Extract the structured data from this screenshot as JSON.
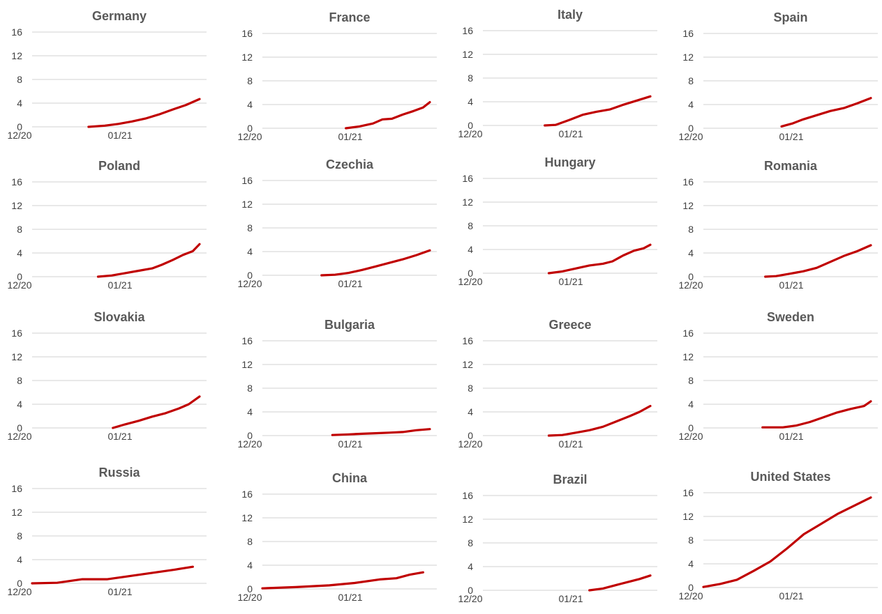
{
  "chart_data": [
    {
      "type": "line",
      "title": "Germany",
      "yticks": [
        0,
        4,
        8,
        12,
        16
      ],
      "ylim": [
        0,
        16
      ],
      "x_ticks": [
        "12/20",
        "01/21"
      ],
      "series": [
        {
          "values": [
            [
              0.18,
              0.0
            ],
            [
              0.3,
              0.2
            ],
            [
              0.4,
              0.5
            ],
            [
              0.5,
              0.9
            ],
            [
              0.6,
              1.4
            ],
            [
              0.7,
              2.1
            ],
            [
              0.8,
              2.9
            ],
            [
              0.9,
              3.7
            ],
            [
              1.0,
              4.7
            ]
          ]
        }
      ]
    },
    {
      "type": "line",
      "title": "France",
      "yticks": [
        0,
        4,
        8,
        12,
        16
      ],
      "ylim": [
        0,
        16
      ],
      "x_ticks": [
        "12/20",
        "01/21"
      ],
      "series": [
        {
          "values": [
            [
              0.38,
              0.0
            ],
            [
              0.48,
              0.3
            ],
            [
              0.58,
              0.8
            ],
            [
              0.65,
              1.5
            ],
            [
              0.72,
              1.6
            ],
            [
              0.8,
              2.3
            ],
            [
              0.88,
              2.9
            ],
            [
              0.95,
              3.5
            ],
            [
              1.0,
              4.4
            ]
          ]
        }
      ]
    },
    {
      "type": "line",
      "title": "Italy",
      "yticks": [
        0,
        4,
        8,
        12,
        16
      ],
      "ylim": [
        0,
        16
      ],
      "x_ticks": [
        "12/20",
        "01/21"
      ],
      "series": [
        {
          "values": [
            [
              0.22,
              0.0
            ],
            [
              0.3,
              0.1
            ],
            [
              0.4,
              0.9
            ],
            [
              0.5,
              1.8
            ],
            [
              0.6,
              2.3
            ],
            [
              0.7,
              2.7
            ],
            [
              0.8,
              3.5
            ],
            [
              0.9,
              4.2
            ],
            [
              1.0,
              4.9
            ]
          ]
        }
      ]
    },
    {
      "type": "line",
      "title": "Spain",
      "yticks": [
        0,
        4,
        8,
        12,
        16
      ],
      "ylim": [
        0,
        16
      ],
      "x_ticks": [
        "12/20",
        "01/21"
      ],
      "series": [
        {
          "values": [
            [
              0.34,
              0.3
            ],
            [
              0.42,
              0.8
            ],
            [
              0.5,
              1.5
            ],
            [
              0.6,
              2.2
            ],
            [
              0.7,
              2.9
            ],
            [
              0.8,
              3.4
            ],
            [
              0.9,
              4.2
            ],
            [
              1.0,
              5.1
            ]
          ]
        }
      ]
    },
    {
      "type": "line",
      "title": "Poland",
      "yticks": [
        0,
        4,
        8,
        12,
        16
      ],
      "ylim": [
        0,
        16
      ],
      "x_ticks": [
        "12/20",
        "01/21"
      ],
      "series": [
        {
          "values": [
            [
              0.25,
              0.0
            ],
            [
              0.35,
              0.2
            ],
            [
              0.45,
              0.6
            ],
            [
              0.55,
              1.0
            ],
            [
              0.65,
              1.4
            ],
            [
              0.72,
              2.0
            ],
            [
              0.8,
              2.8
            ],
            [
              0.88,
              3.7
            ],
            [
              0.95,
              4.3
            ],
            [
              1.0,
              5.5
            ]
          ]
        }
      ]
    },
    {
      "type": "line",
      "title": "Czechia",
      "yticks": [
        0,
        4,
        8,
        12,
        16
      ],
      "ylim": [
        0,
        16
      ],
      "x_ticks": [
        "12/20",
        "01/21"
      ],
      "series": [
        {
          "values": [
            [
              0.2,
              0.0
            ],
            [
              0.3,
              0.1
            ],
            [
              0.4,
              0.4
            ],
            [
              0.5,
              0.9
            ],
            [
              0.6,
              1.5
            ],
            [
              0.7,
              2.1
            ],
            [
              0.8,
              2.7
            ],
            [
              0.9,
              3.4
            ],
            [
              1.0,
              4.2
            ]
          ]
        }
      ]
    },
    {
      "type": "line",
      "title": "Hungary",
      "yticks": [
        0,
        4,
        8,
        12,
        16
      ],
      "ylim": [
        0,
        16
      ],
      "x_ticks": [
        "12/20",
        "01/21"
      ],
      "series": [
        {
          "values": [
            [
              0.25,
              0.0
            ],
            [
              0.35,
              0.3
            ],
            [
              0.45,
              0.8
            ],
            [
              0.55,
              1.3
            ],
            [
              0.65,
              1.6
            ],
            [
              0.72,
              2.0
            ],
            [
              0.8,
              3.0
            ],
            [
              0.88,
              3.8
            ],
            [
              0.95,
              4.2
            ],
            [
              1.0,
              4.8
            ]
          ]
        }
      ]
    },
    {
      "type": "line",
      "title": "Romania",
      "yticks": [
        0,
        4,
        8,
        12,
        16
      ],
      "ylim": [
        0,
        16
      ],
      "x_ticks": [
        "12/20",
        "01/21"
      ],
      "series": [
        {
          "values": [
            [
              0.22,
              0.0
            ],
            [
              0.3,
              0.1
            ],
            [
              0.4,
              0.5
            ],
            [
              0.5,
              0.9
            ],
            [
              0.6,
              1.5
            ],
            [
              0.7,
              2.5
            ],
            [
              0.8,
              3.5
            ],
            [
              0.9,
              4.3
            ],
            [
              1.0,
              5.3
            ]
          ]
        }
      ]
    },
    {
      "type": "line",
      "title": "Slovakia",
      "yticks": [
        0,
        4,
        8,
        12,
        16
      ],
      "ylim": [
        0,
        16
      ],
      "x_ticks": [
        "12/20",
        "01/21"
      ],
      "series": [
        {
          "values": [
            [
              0.36,
              0.0
            ],
            [
              0.45,
              0.6
            ],
            [
              0.55,
              1.2
            ],
            [
              0.65,
              1.9
            ],
            [
              0.75,
              2.5
            ],
            [
              0.85,
              3.3
            ],
            [
              0.92,
              4.0
            ],
            [
              1.0,
              5.3
            ]
          ]
        }
      ]
    },
    {
      "type": "line",
      "title": "Bulgaria",
      "yticks": [
        0,
        4,
        8,
        12,
        16
      ],
      "ylim": [
        0,
        16
      ],
      "x_ticks": [
        "12/20",
        "01/21"
      ],
      "series": [
        {
          "values": [
            [
              0.28,
              0.1
            ],
            [
              0.4,
              0.2
            ],
            [
              0.5,
              0.3
            ],
            [
              0.6,
              0.4
            ],
            [
              0.7,
              0.5
            ],
            [
              0.8,
              0.6
            ],
            [
              0.9,
              0.9
            ],
            [
              1.0,
              1.1
            ]
          ]
        }
      ]
    },
    {
      "type": "line",
      "title": "Greece",
      "yticks": [
        0,
        4,
        8,
        12,
        16
      ],
      "ylim": [
        0,
        16
      ],
      "x_ticks": [
        "12/20",
        "01/21"
      ],
      "series": [
        {
          "values": [
            [
              0.25,
              0.0
            ],
            [
              0.35,
              0.1
            ],
            [
              0.45,
              0.5
            ],
            [
              0.55,
              0.9
            ],
            [
              0.65,
              1.5
            ],
            [
              0.75,
              2.4
            ],
            [
              0.85,
              3.3
            ],
            [
              0.92,
              4.0
            ],
            [
              1.0,
              5.0
            ]
          ]
        }
      ]
    },
    {
      "type": "line",
      "title": "Sweden",
      "yticks": [
        0,
        4,
        8,
        12,
        16
      ],
      "ylim": [
        0,
        16
      ],
      "x_ticks": [
        "12/20",
        "01/21"
      ],
      "series": [
        {
          "values": [
            [
              0.2,
              0.1
            ],
            [
              0.35,
              0.1
            ],
            [
              0.45,
              0.4
            ],
            [
              0.55,
              1.0
            ],
            [
              0.65,
              1.8
            ],
            [
              0.75,
              2.6
            ],
            [
              0.85,
              3.2
            ],
            [
              0.95,
              3.7
            ],
            [
              1.0,
              4.5
            ]
          ]
        }
      ]
    },
    {
      "type": "line",
      "title": "Russia",
      "yticks": [
        0,
        4,
        8,
        12,
        16
      ],
      "ylim": [
        0,
        16
      ],
      "x_ticks": [
        "12/20",
        "01/21"
      ],
      "series": [
        {
          "values": [
            [
              0.0,
              0.0
            ],
            [
              0.15,
              0.1
            ],
            [
              0.3,
              0.7
            ],
            [
              0.45,
              0.7
            ],
            [
              0.55,
              1.1
            ],
            [
              0.7,
              1.7
            ],
            [
              0.85,
              2.3
            ],
            [
              0.96,
              2.8
            ]
          ]
        }
      ]
    },
    {
      "type": "line",
      "title": "China",
      "yticks": [
        0,
        4,
        8,
        12,
        16
      ],
      "ylim": [
        0,
        16
      ],
      "x_ticks": [
        "12/20",
        "01/21"
      ],
      "series": [
        {
          "values": [
            [
              0.0,
              0.1
            ],
            [
              0.2,
              0.3
            ],
            [
              0.4,
              0.6
            ],
            [
              0.55,
              1.0
            ],
            [
              0.7,
              1.6
            ],
            [
              0.8,
              1.8
            ],
            [
              0.88,
              2.4
            ],
            [
              0.96,
              2.8
            ]
          ]
        }
      ]
    },
    {
      "type": "line",
      "title": "Brazil",
      "yticks": [
        0,
        4,
        8,
        12,
        16
      ],
      "ylim": [
        0,
        16
      ],
      "x_ticks": [
        "12/20",
        "01/21"
      ],
      "series": [
        {
          "values": [
            [
              0.55,
              0.0
            ],
            [
              0.65,
              0.3
            ],
            [
              0.75,
              0.9
            ],
            [
              0.85,
              1.5
            ],
            [
              0.92,
              1.9
            ],
            [
              1.0,
              2.5
            ]
          ]
        }
      ]
    },
    {
      "type": "line",
      "title": "United States",
      "yticks": [
        0,
        4,
        8,
        12,
        16
      ],
      "ylim": [
        0,
        16
      ],
      "x_ticks": [
        "12/20",
        "01/21"
      ],
      "series": [
        {
          "values": [
            [
              0.0,
              0.1
            ],
            [
              0.1,
              0.6
            ],
            [
              0.2,
              1.3
            ],
            [
              0.3,
              2.8
            ],
            [
              0.4,
              4.4
            ],
            [
              0.5,
              6.6
            ],
            [
              0.6,
              9.0
            ],
            [
              0.7,
              10.7
            ],
            [
              0.8,
              12.4
            ],
            [
              0.9,
              13.8
            ],
            [
              1.0,
              15.2
            ]
          ]
        }
      ]
    }
  ]
}
